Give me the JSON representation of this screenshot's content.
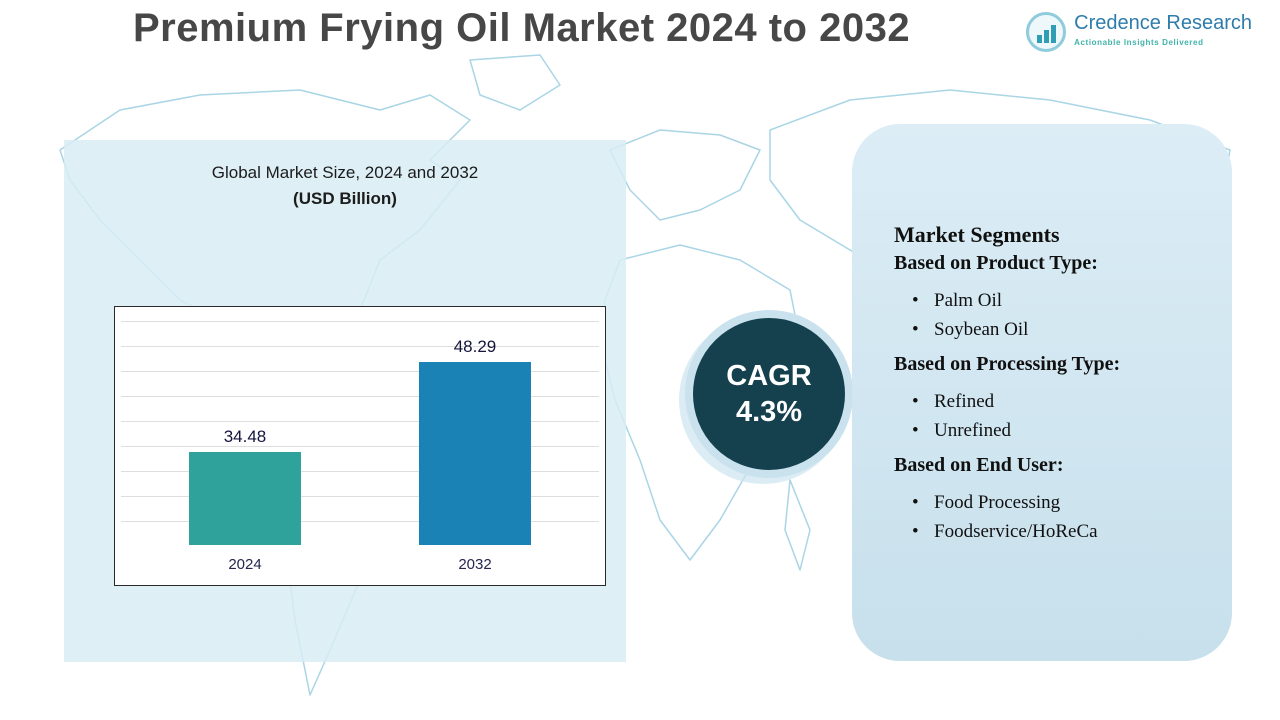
{
  "title": "Premium Frying Oil Market 2024 to 2032",
  "logo": {
    "name": "Credence Research",
    "tagline": "Actionable Insights Delivered"
  },
  "chart_panel": {
    "subtitle_line1": "Global Market Size, 2024 and 2032",
    "subtitle_line2": "(USD Billion)"
  },
  "cagr": {
    "label": "CAGR",
    "value": "4.3%"
  },
  "segments": {
    "title": "Market Segments",
    "groups": [
      {
        "heading": "Based on Product Type:",
        "items": [
          "Palm Oil",
          "Soybean Oil"
        ]
      },
      {
        "heading": "Based on Processing Type:",
        "items": [
          "Refined",
          "Unrefined"
        ]
      },
      {
        "heading": "Based on End User:",
        "items": [
          "Food Processing",
          "Foodservice/HoReCa"
        ]
      }
    ]
  },
  "chart_data": {
    "type": "bar",
    "categories": [
      "2024",
      "2032"
    ],
    "values": [
      34.48,
      48.29
    ],
    "title": "Global Market Size, 2024 and 2032 (USD Billion)",
    "xlabel": "",
    "ylabel": "",
    "ylim": [
      20,
      55
    ],
    "grid": true,
    "legend": false,
    "bar_colors": [
      "#2fa39b",
      "#1a82b4"
    ]
  },
  "colors": {
    "bar_2024": "#2fa39b",
    "bar_2032": "#1a82b4",
    "cagr_circle": "#15404e",
    "panel_blue": "#d9ecf5",
    "map_line": "#a9d5e5"
  }
}
